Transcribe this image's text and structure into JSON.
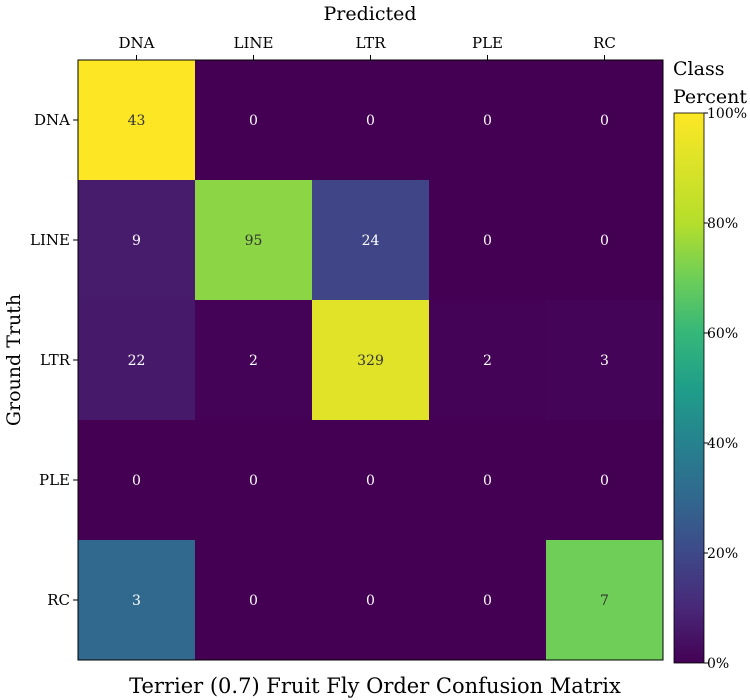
{
  "chart_data": {
    "type": "heatmap",
    "title": "Terrier (0.7) Fruit Fly Order Confusion Matrix",
    "xlabel": "Predicted",
    "ylabel": "Ground Truth",
    "x_categories": [
      "DNA",
      "LINE",
      "LTR",
      "PLE",
      "RC"
    ],
    "y_categories": [
      "DNA",
      "LINE",
      "LTR",
      "PLE",
      "RC"
    ],
    "counts": [
      [
        43,
        0,
        0,
        0,
        0
      ],
      [
        9,
        95,
        24,
        0,
        0
      ],
      [
        22,
        2,
        329,
        2,
        3
      ],
      [
        0,
        0,
        0,
        0,
        0
      ],
      [
        3,
        0,
        0,
        0,
        7
      ]
    ],
    "colorbar": {
      "title_line1": "Class",
      "title_line2": "Percent",
      "range": [
        0,
        100
      ],
      "ticks": [
        "0%",
        "20%",
        "40%",
        "60%",
        "80%",
        "100%"
      ],
      "tick_values": [
        0,
        20,
        40,
        60,
        80,
        100
      ]
    },
    "colormap": "viridis"
  }
}
